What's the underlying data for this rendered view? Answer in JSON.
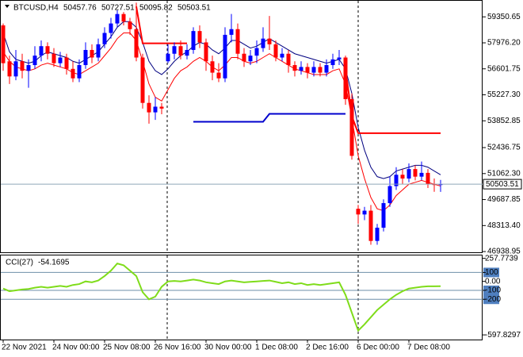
{
  "chart_data": {
    "type": "candlestick",
    "title": "BTCUSD,H4",
    "categories": [
      "22 Nov 2021",
      null,
      null,
      null,
      null,
      null,
      null,
      null,
      "24 Nov 00:00",
      null,
      null,
      null,
      null,
      null,
      null,
      null,
      "25 Nov 08:00",
      null,
      null,
      null,
      null,
      null,
      null,
      null,
      "26 Nov 16:00",
      null,
      null,
      null,
      null,
      null,
      null,
      null,
      "30 Nov 00:00",
      null,
      null,
      null,
      null,
      null,
      null,
      null,
      "1 Dec 08:00",
      null,
      null,
      null,
      null,
      null,
      null,
      null,
      "2 Dec 16:00",
      null,
      null,
      null,
      null,
      null,
      null,
      null,
      "6 Dec 00:00",
      null,
      null,
      null,
      null,
      null,
      null,
      null,
      "7 Dec 08:00",
      null,
      null,
      null,
      null,
      null
    ],
    "open": [
      58900,
      57000,
      56200,
      57000,
      56500,
      56800,
      57300,
      57800,
      57400,
      56900,
      57200,
      56600,
      56100,
      56800,
      57600,
      57200,
      57900,
      58500,
      59000,
      59500,
      59100,
      58700,
      57200,
      54800,
      54300,
      54600,
      57000,
      57400,
      57800,
      57300,
      57600,
      58600,
      58000,
      57000,
      56400,
      56100,
      58400,
      58700,
      57400,
      57000,
      57300,
      57700,
      58200,
      57900,
      57200,
      57400,
      56800,
      56500,
      56700,
      56400,
      56700,
      56400,
      56800,
      57100,
      57200,
      55000,
      49200,
      48900,
      49100,
      47500,
      48200,
      49500,
      50400,
      51000,
      50800,
      51300,
      50900,
      51100,
      50500,
      50457.76
    ],
    "high": [
      59000,
      57300,
      57600,
      57400,
      57100,
      57800,
      58100,
      58000,
      57700,
      57500,
      57400,
      57000,
      57100,
      58000,
      57900,
      58200,
      58800,
      59300,
      59700,
      59600,
      59300,
      60100,
      57400,
      55200,
      55100,
      54800,
      57900,
      58000,
      58100,
      57900,
      58800,
      58900,
      58200,
      57300,
      56900,
      58800,
      59500,
      59000,
      57700,
      57600,
      58100,
      58800,
      59400,
      58100,
      57700,
      57600,
      57000,
      57000,
      56900,
      57000,
      56900,
      57100,
      57400,
      57600,
      57300,
      55300,
      49400,
      49300,
      49400,
      48400,
      49700,
      50900,
      51400,
      51300,
      51600,
      51500,
      51700,
      51300,
      50800,
      50727.51
    ],
    "low": [
      56500,
      55800,
      56000,
      56100,
      55600,
      56600,
      57000,
      57100,
      56700,
      56700,
      56300,
      55900,
      55900,
      56600,
      56900,
      57000,
      57700,
      58200,
      58800,
      58900,
      58400,
      57000,
      54500,
      53700,
      53900,
      54200,
      56900,
      57100,
      57100,
      57100,
      57400,
      57700,
      56500,
      56000,
      55900,
      55900,
      58000,
      57100,
      56700,
      56800,
      56900,
      57500,
      57600,
      57000,
      57000,
      56400,
      56200,
      56300,
      56100,
      56200,
      56200,
      56200,
      56600,
      56800,
      54700,
      51800,
      48400,
      48600,
      47300,
      47300,
      48000,
      49300,
      50200,
      50500,
      50600,
      50700,
      50700,
      50300,
      50100,
      50095.82
    ],
    "close": [
      56900,
      56200,
      57000,
      56500,
      56800,
      57300,
      57800,
      57400,
      56900,
      57200,
      56600,
      56100,
      56800,
      57600,
      57200,
      57900,
      58500,
      59000,
      59500,
      59100,
      58700,
      57200,
      54800,
      54300,
      54600,
      54500,
      57400,
      57800,
      57300,
      57600,
      58600,
      58000,
      57000,
      56400,
      56100,
      58400,
      58700,
      57400,
      57000,
      57300,
      57700,
      58200,
      57900,
      57200,
      57400,
      56800,
      56500,
      56700,
      56400,
      56700,
      56400,
      56800,
      57100,
      57200,
      55000,
      52000,
      48900,
      49100,
      47500,
      48200,
      49500,
      50400,
      51000,
      50800,
      51300,
      50900,
      51100,
      50500,
      50460,
      50503.51
    ],
    "up_color": "#0000ff",
    "down_color": "#ff0000",
    "ylim": [
      46900,
      60200
    ],
    "yticks": [
      59350.65,
      {
        "value": 57976.2,
        "label": "57976.20"
      },
      56601.75,
      {
        "value": 55227.3,
        "label": "55227.30"
      },
      53852.85,
      52436.75,
      {
        "value": 51062.3,
        "label": "51062.30"
      },
      49687.85,
      {
        "value": 48313.4,
        "label": "48313.40"
      },
      46938.95
    ],
    "series": [
      {
        "color": "#000080",
        "width": 1,
        "values": [
          58500,
          57500,
          57100,
          57000,
          56900,
          57000,
          57300,
          57500,
          57400,
          57300,
          57200,
          57000,
          56900,
          57100,
          57300,
          57500,
          57900,
          58300,
          58800,
          59100,
          59100,
          58800,
          58000,
          57000,
          56500,
          56300,
          56600,
          57000,
          57300,
          57500,
          57800,
          58000,
          57900,
          57600,
          57400,
          57700,
          58100,
          58100,
          57900,
          57700,
          57800,
          58000,
          58200,
          58000,
          57800,
          57600,
          57400,
          57300,
          57200,
          57100,
          57000,
          56900,
          57000,
          57100,
          56600,
          55300,
          53500,
          52300,
          51400,
          50900,
          50800,
          50900,
          51200,
          51300,
          51400,
          51500,
          51500,
          51400,
          51200,
          51000
        ]
      },
      {
        "color": "#ff0000",
        "width": 1,
        "values": [
          57500,
          57000,
          56700,
          56600,
          56500,
          56600,
          56800,
          56900,
          56800,
          56700,
          56600,
          56400,
          56300,
          56500,
          56700,
          56900,
          57300,
          57700,
          58200,
          58500,
          58500,
          58100,
          57000,
          55800,
          55100,
          54900,
          55500,
          56100,
          56500,
          56700,
          57000,
          57200,
          57000,
          56700,
          56500,
          56800,
          57200,
          57200,
          57000,
          56900,
          57000,
          57200,
          57400,
          57200,
          57000,
          56800,
          56600,
          56500,
          56400,
          56300,
          56300,
          56300,
          56500,
          56600,
          55800,
          54000,
          52000,
          50800,
          49800,
          49200,
          49100,
          49400,
          49900,
          50200,
          50500,
          50600,
          50700,
          50600,
          50500,
          50400
        ]
      },
      {
        "color": "#ff0000",
        "width": 2,
        "values": [
          null,
          null,
          null,
          null,
          null,
          null,
          null,
          null,
          null,
          null,
          null,
          null,
          null,
          null,
          null,
          null,
          null,
          null,
          null,
          null,
          null,
          59900,
          57950,
          57950,
          57950,
          57950,
          57950,
          57950,
          57950,
          57950,
          null,
          null,
          null,
          null,
          null,
          null,
          null,
          null,
          null,
          null,
          null,
          null,
          null,
          null,
          null,
          null,
          null,
          null,
          null,
          null,
          null,
          null,
          null,
          null,
          56600,
          54100,
          53200,
          53200,
          53200,
          53200,
          53200,
          53200,
          53200,
          53200,
          53200,
          53200,
          53200,
          53200,
          53200,
          53200
        ]
      },
      {
        "color": "#0000cd",
        "width": 2,
        "values": [
          null,
          null,
          null,
          null,
          null,
          null,
          null,
          null,
          null,
          null,
          null,
          null,
          null,
          null,
          null,
          null,
          null,
          null,
          null,
          null,
          null,
          null,
          null,
          null,
          null,
          null,
          null,
          null,
          null,
          null,
          53800,
          53800,
          53800,
          53800,
          53800,
          53800,
          53800,
          53800,
          53800,
          53800,
          53800,
          53800,
          54220,
          54220,
          54220,
          54220,
          54220,
          54220,
          54220,
          54220,
          54220,
          54220,
          54220,
          54220,
          54220,
          null,
          null,
          null,
          null,
          null,
          null,
          null,
          null,
          null,
          null,
          null,
          null,
          null,
          null,
          null
        ]
      }
    ],
    "cci": {
      "title": "CCI(27)",
      "color": "#7fdc1a",
      "values": [
        -80,
        -110,
        -100,
        -90,
        -85,
        -70,
        -60,
        -70,
        -60,
        -50,
        -60,
        -40,
        -30,
        0,
        -10,
        10,
        60,
        120,
        200,
        180,
        120,
        60,
        -120,
        -200,
        -170,
        -60,
        0,
        5,
        0,
        10,
        20,
        10,
        -10,
        -20,
        -30,
        0,
        10,
        0,
        -10,
        -5,
        0,
        5,
        10,
        -5,
        -20,
        -10,
        -30,
        -20,
        -40,
        -30,
        -40,
        -30,
        -20,
        -10,
        -150,
        -350,
        -550,
        -480,
        -400,
        -320,
        -260,
        -200,
        -150,
        -110,
        -80,
        -70,
        -60,
        -55,
        -55,
        -54.1695
      ],
      "ylim": [
        -650,
        290
      ],
      "yticks": [
        257.7739,
        100,
        {
          "value": 0,
          "label": "0.00"
        },
        -100,
        -200,
        -597.8297
      ],
      "levels": [
        100,
        -100,
        -200
      ]
    }
  }
}
